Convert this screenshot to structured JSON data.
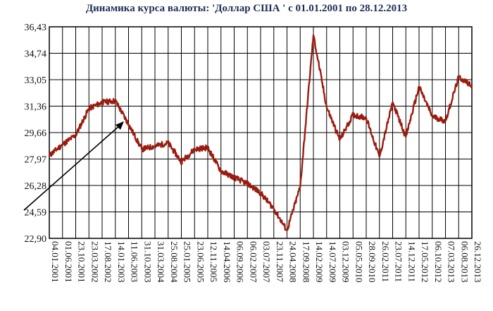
{
  "chart_data": {
    "type": "line",
    "title": "Динамика курса валюты: 'Доллар США ' с 01.01.2001 по 28.12.2013",
    "xlabel": "",
    "ylabel": "",
    "ylim": [
      22.9,
      36.43
    ],
    "y_ticks": [
      "22,90",
      "24,59",
      "26,28",
      "27,97",
      "29,66",
      "31,36",
      "33,05",
      "34,74",
      "36,43"
    ],
    "x_tick_labels": [
      "04.01.2001",
      "01.06.2001",
      "23.10.2001",
      "23.03.2002",
      "17.08.2002",
      "14.01.2003",
      "11.06.2003",
      "31.10.2003",
      "31.03.2004",
      "25.08.2004",
      "25.01.2005",
      "23.06.2005",
      "12.11.2005",
      "14.04.2006",
      "06.09.2006",
      "06.02.2007",
      "03.07.2007",
      "23.11.2007",
      "24.04.2008",
      "17.09.2008",
      "14.02.2009",
      "14.07.2009",
      "03.12.2009",
      "05.05.2010",
      "28.09.2010",
      "26.02.2011",
      "23.07.2011",
      "14.12.2011",
      "17.05.2012",
      "06.10.2012",
      "07.03.2013",
      "06.08.2013",
      "26.12.2013"
    ],
    "grid": true,
    "series": [
      {
        "color": "#9b1b0e",
        "x": [
          "04.01.2001",
          "01.06.2001",
          "23.10.2001",
          "23.03.2002",
          "17.08.2002",
          "14.01.2003",
          "11.06.2003",
          "31.10.2003",
          "31.03.2004",
          "25.08.2004",
          "25.01.2005",
          "23.06.2005",
          "12.11.2005",
          "14.04.2006",
          "06.09.2006",
          "06.02.2007",
          "03.07.2007",
          "23.11.2007",
          "24.04.2008",
          "17.09.2008",
          "14.02.2009",
          "14.07.2009",
          "03.12.2009",
          "05.05.2010",
          "28.09.2010",
          "26.02.2011",
          "23.07.2011",
          "14.12.2011",
          "17.05.2012",
          "06.10.2012",
          "07.03.2013",
          "06.08.2013",
          "26.12.2013"
        ],
        "values": [
          28.2,
          28.9,
          29.5,
          31.2,
          31.6,
          31.7,
          30.2,
          28.6,
          28.8,
          29.0,
          27.8,
          28.6,
          28.7,
          27.2,
          26.8,
          26.4,
          25.8,
          24.8,
          23.4,
          26.2,
          35.9,
          31.3,
          29.2,
          30.8,
          30.6,
          28.1,
          31.6,
          29.4,
          32.6,
          30.7,
          30.4,
          33.2,
          32.7
        ]
      }
    ]
  }
}
